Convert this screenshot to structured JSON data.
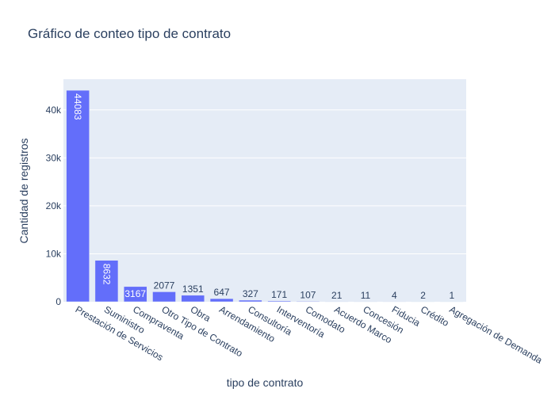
{
  "chart_data": {
    "type": "bar",
    "title": "Gráfico de conteo tipo de contrato",
    "xlabel": "tipo de contrato",
    "ylabel": "Cantidad de registros",
    "categories": [
      "Prestación de Servicios",
      "Suministro",
      "Compraventa",
      "Otro Tipo de Contrato",
      "Obra",
      "Arrendamiento",
      "Consultoría",
      "Interventoría",
      "Comodato",
      "Acuerdo Marco",
      "Concesión",
      "Fiducia",
      "Crédito",
      "Agregación de Demanda"
    ],
    "values": [
      44083,
      8632,
      3167,
      2077,
      1351,
      647,
      327,
      171,
      107,
      21,
      11,
      4,
      2,
      1
    ],
    "data_labels": [
      "44083",
      "8632",
      "3167",
      "2077",
      "1351",
      "647",
      "327",
      "171",
      "107",
      "21",
      "11",
      "4",
      "2",
      "1"
    ],
    "ylim": [
      0,
      46402
    ],
    "yticks": [
      0,
      10000,
      20000,
      30000,
      40000
    ],
    "ytick_labels": [
      "0",
      "10k",
      "20k",
      "30k",
      "40k"
    ],
    "grid": true,
    "legend": "none",
    "colors": {
      "bar": "#636efa",
      "plot_bg": "#e5ecf6",
      "grid": "#ffffff",
      "text": "#2a3f5f",
      "label_inside": "#ffffff"
    }
  }
}
